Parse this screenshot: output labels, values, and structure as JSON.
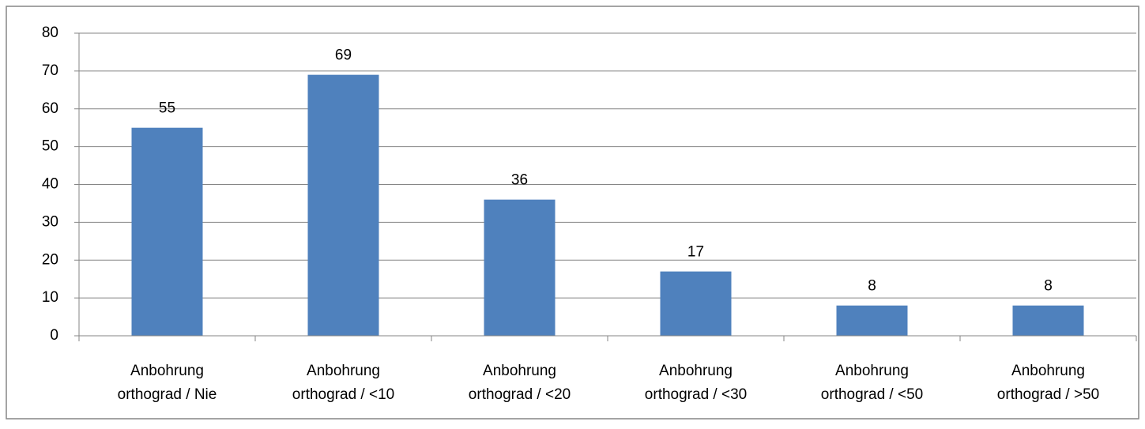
{
  "chart_data": {
    "type": "bar",
    "categories": [
      "Anbohrung orthograd / Nie",
      "Anbohrung orthograd / <10",
      "Anbohrung orthograd / <20",
      "Anbohrung orthograd / <30",
      "Anbohrung orthograd / <50",
      "Anbohrung orthograd / >50"
    ],
    "values": [
      55,
      69,
      36,
      17,
      8,
      8
    ],
    "color": "#4f81bd",
    "ylim": [
      0,
      80
    ],
    "yticks": [
      0,
      10,
      20,
      30,
      40,
      50,
      60,
      70,
      80
    ],
    "grid": true
  }
}
